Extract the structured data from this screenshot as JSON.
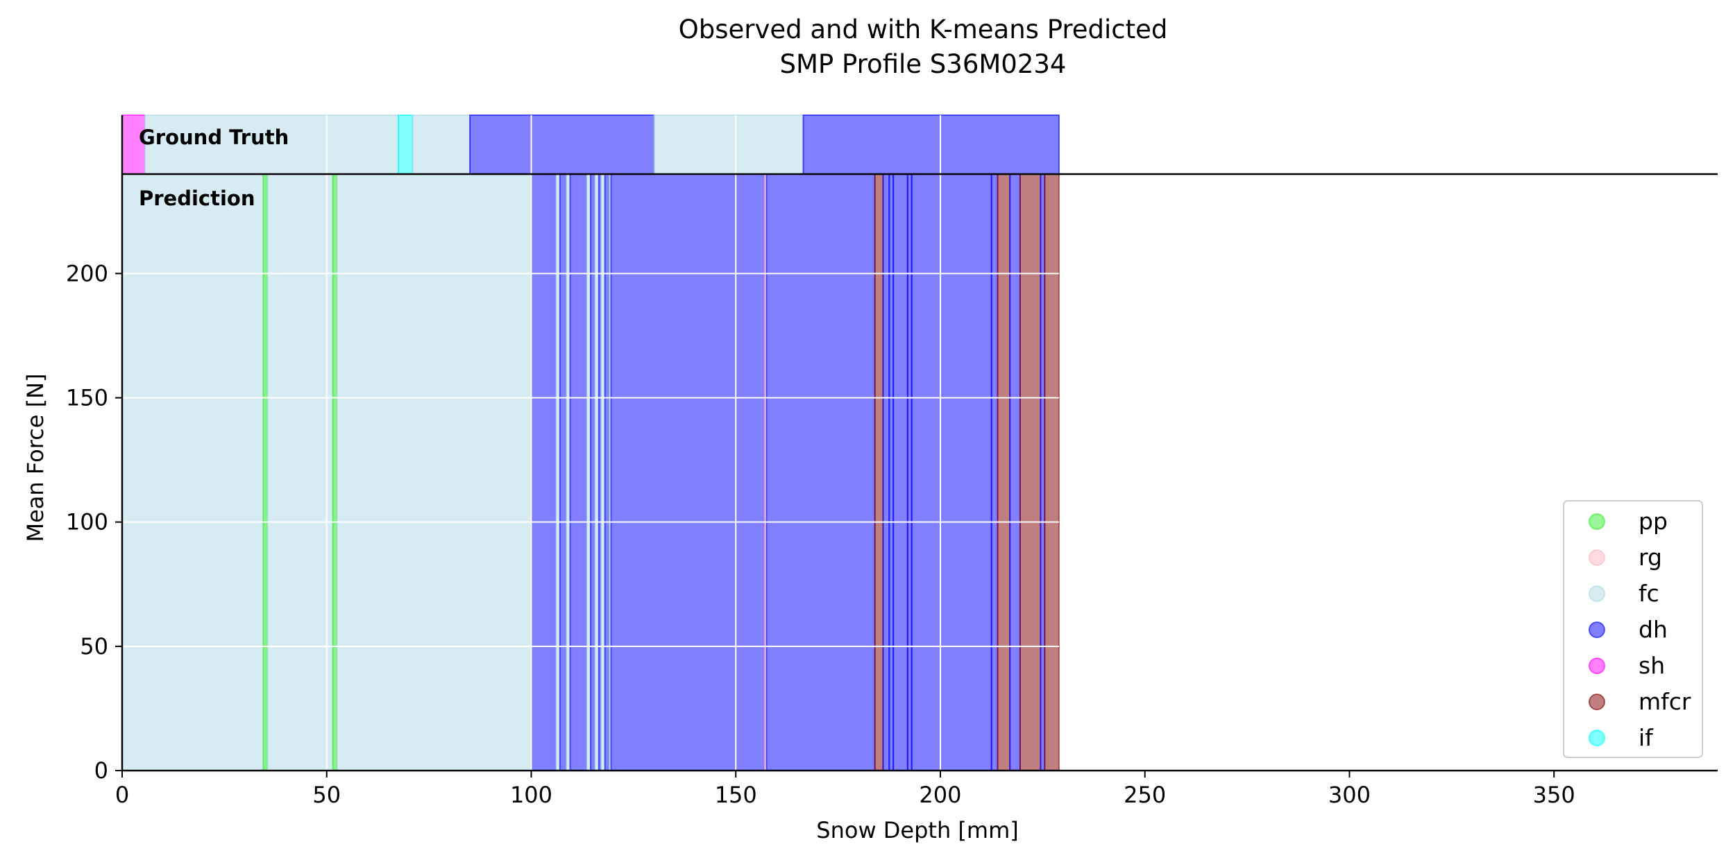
{
  "chart_data": {
    "type": "bar",
    "title_line1": "Observed and with K-means Predicted",
    "title_line2": "SMP Profile S36M0234",
    "xlabel": "Snow Depth [mm]",
    "ylabel": "Mean Force [N]",
    "xlim": [
      0,
      390
    ],
    "ylim": [
      0,
      240
    ],
    "xticks": [
      0,
      50,
      100,
      150,
      200,
      250,
      300,
      350
    ],
    "yticks": [
      0,
      50,
      100,
      150,
      200
    ],
    "grid": true,
    "legend_position": "lower right",
    "panel_labels": {
      "ground_truth": "Ground Truth",
      "prediction": "Prediction"
    },
    "colors": {
      "pp": "#33ee33",
      "rg": "#ffb6c1",
      "fc": "#add8e6",
      "dh": "#0000ff",
      "sh": "#ff00ff",
      "mfcr": "#800000",
      "if": "#00ffff"
    },
    "legend": [
      "pp",
      "rg",
      "fc",
      "dh",
      "sh",
      "mfcr",
      "if"
    ],
    "ground_truth_segments": [
      {
        "start": 0,
        "end": 5.5,
        "label": "sh"
      },
      {
        "start": 5.5,
        "end": 67.5,
        "label": "fc"
      },
      {
        "start": 67.5,
        "end": 71,
        "label": "if"
      },
      {
        "start": 71,
        "end": 85,
        "label": "fc"
      },
      {
        "start": 85,
        "end": 130,
        "label": "dh"
      },
      {
        "start": 130,
        "end": 166.5,
        "label": "fc"
      },
      {
        "start": 166.5,
        "end": 229,
        "label": "dh"
      }
    ],
    "prediction_segments": [
      {
        "start": 0,
        "end": 34.5,
        "label": "fc"
      },
      {
        "start": 34.5,
        "end": 35.5,
        "label": "pp"
      },
      {
        "start": 35.5,
        "end": 51.5,
        "label": "fc"
      },
      {
        "start": 51.5,
        "end": 52.5,
        "label": "pp"
      },
      {
        "start": 52.5,
        "end": 100,
        "label": "fc"
      },
      {
        "start": 100,
        "end": 106,
        "label": "dh"
      },
      {
        "start": 106,
        "end": 107,
        "label": "fc"
      },
      {
        "start": 107,
        "end": 108.5,
        "label": "dh"
      },
      {
        "start": 108.5,
        "end": 109.5,
        "label": "fc"
      },
      {
        "start": 109.5,
        "end": 113.5,
        "label": "dh"
      },
      {
        "start": 113.5,
        "end": 114.5,
        "label": "fc"
      },
      {
        "start": 114.5,
        "end": 115.5,
        "label": "dh"
      },
      {
        "start": 115.5,
        "end": 116.5,
        "label": "fc"
      },
      {
        "start": 116.5,
        "end": 117,
        "label": "dh"
      },
      {
        "start": 117,
        "end": 118,
        "label": "fc"
      },
      {
        "start": 118,
        "end": 119,
        "label": "dh"
      },
      {
        "start": 119,
        "end": 119.5,
        "label": "fc"
      },
      {
        "start": 119.5,
        "end": 157,
        "label": "dh"
      },
      {
        "start": 157,
        "end": 157.5,
        "label": "rg"
      },
      {
        "start": 157.5,
        "end": 184,
        "label": "dh"
      },
      {
        "start": 184,
        "end": 186,
        "label": "mfcr"
      },
      {
        "start": 186,
        "end": 187.5,
        "label": "dh"
      },
      {
        "start": 187.5,
        "end": 188.5,
        "label": "dh"
      },
      {
        "start": 188.5,
        "end": 192,
        "label": "dh"
      },
      {
        "start": 192,
        "end": 193,
        "label": "dh"
      },
      {
        "start": 193,
        "end": 212.5,
        "label": "dh"
      },
      {
        "start": 212.5,
        "end": 214,
        "label": "dh"
      },
      {
        "start": 214,
        "end": 217,
        "label": "mfcr"
      },
      {
        "start": 217,
        "end": 219.5,
        "label": "dh"
      },
      {
        "start": 219.5,
        "end": 224.5,
        "label": "mfcr"
      },
      {
        "start": 224.5,
        "end": 225.5,
        "label": "dh"
      },
      {
        "start": 225.5,
        "end": 229,
        "label": "mfcr"
      }
    ]
  }
}
